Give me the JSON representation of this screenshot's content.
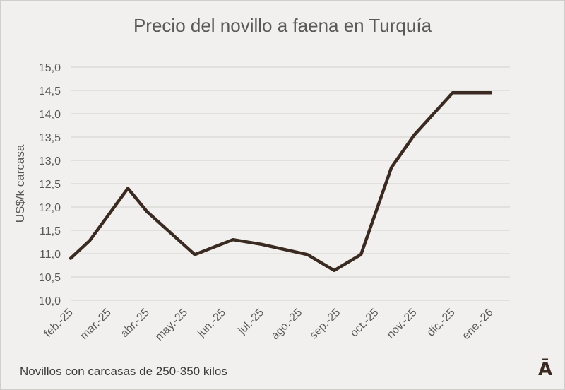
{
  "chart_data": {
    "type": "line",
    "title": "Precio del novillo a faena en Turquía",
    "xlabel": "",
    "ylabel": "US$/k carcasa",
    "categories": [
      "feb.-25",
      "mar.-25",
      "abr.-25",
      "may.-25",
      "jun.-25",
      "jul.-25",
      "ago.-25",
      "sep.-25",
      "oct.-25",
      "nov.-25",
      "dic.-25",
      "ene.-26"
    ],
    "ylim": [
      10.0,
      15.0
    ],
    "ytick_step": 0.5,
    "ytick_labels": [
      "10,0",
      "10,5",
      "11,0",
      "11,5",
      "12,0",
      "12,5",
      "13,0",
      "13,5",
      "14,0",
      "14,5",
      "15,0"
    ],
    "grid": "horizontal",
    "line_color": "#3b2a22",
    "x": [
      0.0,
      0.5,
      1.5,
      2.0,
      3.25,
      4.25,
      5.0,
      6.2,
      6.9,
      7.6,
      8.4,
      9.0,
      10.0,
      11.0
    ],
    "values": [
      10.9,
      11.28,
      12.4,
      11.9,
      10.98,
      11.3,
      11.2,
      10.98,
      10.64,
      10.98,
      12.85,
      13.55,
      14.45,
      14.45
    ]
  },
  "footnote": "Novillos con carcasas de 250-350 kilos",
  "logo_text": "Ā"
}
